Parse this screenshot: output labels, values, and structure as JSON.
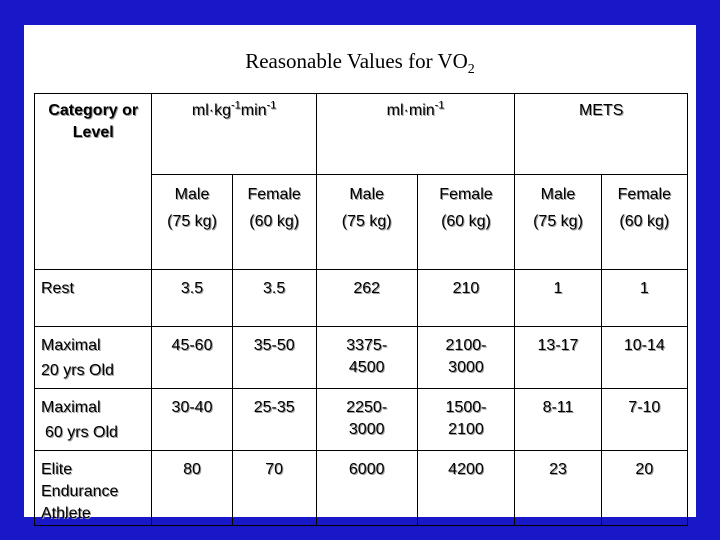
{
  "title": {
    "main": "Reasonable Values for VO",
    "sub": "2"
  },
  "header": {
    "category": "Category or Level",
    "units": [
      {
        "base1": "ml",
        "dot": "·",
        "base2": "kg",
        "exp1": "-1",
        "base3": "min",
        "exp2": "-1"
      },
      {
        "base1": "ml",
        "dot": "·",
        "base2": "min",
        "exp1": "-1"
      },
      {
        "label": "METS"
      }
    ],
    "subheads": [
      {
        "sex": "Male",
        "mass": "(75 kg)"
      },
      {
        "sex": "Female",
        "mass": "(60 kg)"
      },
      {
        "sex": "Male",
        "mass": "(75 kg)"
      },
      {
        "sex": "Female",
        "mass": "(60 kg)"
      },
      {
        "sex": "Male",
        "mass": "(75 kg)"
      },
      {
        "sex": "Female",
        "mass": "(60 kg)"
      }
    ]
  },
  "rows": [
    {
      "label1": "Rest",
      "label2": "",
      "label3": "",
      "values": [
        "3.5",
        "3.5",
        "262",
        "210",
        "1",
        "1"
      ]
    },
    {
      "label1": "Maximal",
      "label2": "20 yrs Old",
      "label3": "",
      "values": [
        "45-60",
        "35-50",
        "3375-",
        "2100-",
        "13-17",
        "10-14"
      ],
      "values2": [
        "",
        "",
        "4500",
        "3000",
        "",
        ""
      ]
    },
    {
      "label1": "Maximal",
      "label2": "60 yrs Old",
      "label3": "",
      "values": [
        "30-40",
        "25-35",
        "2250-",
        "1500-",
        "8-11",
        "7-10"
      ],
      "values2": [
        "",
        "",
        "3000",
        "2100",
        "",
        ""
      ]
    },
    {
      "label1": "Elite",
      "label2": "Endurance",
      "label3": "Athlete",
      "values": [
        "80",
        "70",
        "6000",
        "4200",
        "23",
        "20"
      ]
    }
  ]
}
